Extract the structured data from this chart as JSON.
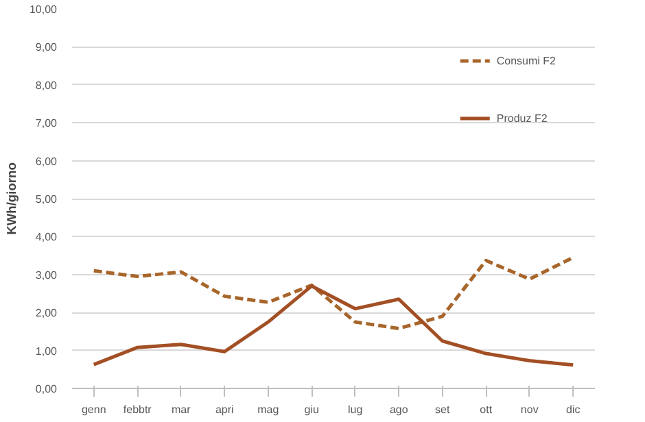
{
  "chart_data": {
    "type": "line",
    "ylabel": "KWh/giorno",
    "categories": [
      "genn",
      "febbtr",
      "mar",
      "apri",
      "mag",
      "giu",
      "lug",
      "ago",
      "set",
      "ott",
      "nov",
      "dic"
    ],
    "series": [
      {
        "name": "Consumi F2",
        "color": "#a8652a",
        "line_style": "dashed",
        "values": [
          3.1,
          2.95,
          3.07,
          2.43,
          2.27,
          2.72,
          1.75,
          1.58,
          1.9,
          3.37,
          2.88,
          3.45
        ]
      },
      {
        "name": "Produz F2",
        "color": "#a34f24",
        "line_style": "solid",
        "values": [
          0.63,
          1.08,
          1.16,
          0.97,
          1.75,
          2.7,
          2.1,
          2.35,
          1.25,
          0.92,
          0.73,
          0.62
        ]
      }
    ],
    "ylim": [
      0,
      10
    ],
    "yticks": [
      {
        "value": 0,
        "label": "0,00"
      },
      {
        "value": 1,
        "label": "1,00"
      },
      {
        "value": 2,
        "label": "2,00"
      },
      {
        "value": 3,
        "label": "3,00"
      },
      {
        "value": 4,
        "label": "4,00"
      },
      {
        "value": 5,
        "label": "5,00"
      },
      {
        "value": 6,
        "label": "6,00"
      },
      {
        "value": 7,
        "label": "7,00"
      },
      {
        "value": 8,
        "label": "8,00"
      },
      {
        "value": 9,
        "label": "9,00"
      },
      {
        "value": 10,
        "label": "10,00"
      }
    ],
    "grid": "y",
    "legend": "top right",
    "marker": "none"
  }
}
